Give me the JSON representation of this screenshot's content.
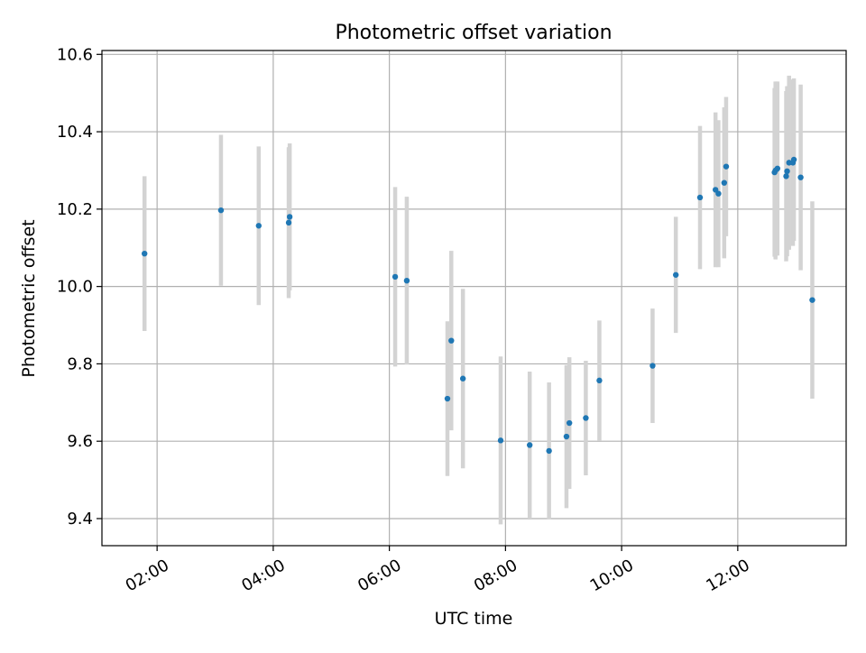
{
  "chart_data": {
    "type": "scatter",
    "title": "Photometric offset variation",
    "xlabel": "UTC time",
    "ylabel": "Photometric offset",
    "x_unit": "hours",
    "xlim": [
      "01:03",
      "13:52"
    ],
    "ylim": [
      9.33,
      10.61
    ],
    "xticks": [
      "02:00",
      "04:00",
      "06:00",
      "08:00",
      "10:00",
      "12:00"
    ],
    "yticks": [
      "9.4",
      "9.6",
      "9.8",
      "10.0",
      "10.2",
      "10.4",
      "10.6"
    ],
    "grid": true,
    "point_color": "#1f77b4",
    "errorbar_color": "#d3d3d3",
    "points": [
      {
        "time": "01:47",
        "y": 10.085,
        "err": 0.2
      },
      {
        "time": "03:06",
        "y": 10.197,
        "err": 0.195
      },
      {
        "time": "03:45",
        "y": 10.157,
        "err": 0.205
      },
      {
        "time": "04:16",
        "y": 10.165,
        "err": 0.195
      },
      {
        "time": "04:17",
        "y": 10.18,
        "err": 0.19
      },
      {
        "time": "06:06",
        "y": 10.025,
        "err": 0.232
      },
      {
        "time": "06:18",
        "y": 10.015,
        "err": 0.217
      },
      {
        "time": "07:00",
        "y": 9.71,
        "err": 0.2
      },
      {
        "time": "07:04",
        "y": 9.86,
        "err": 0.232
      },
      {
        "time": "07:16",
        "y": 9.762,
        "err": 0.232
      },
      {
        "time": "07:55",
        "y": 9.602,
        "err": 0.217
      },
      {
        "time": "08:25",
        "y": 9.59,
        "err": 0.19
      },
      {
        "time": "08:45",
        "y": 9.575,
        "err": 0.177
      },
      {
        "time": "09:03",
        "y": 9.612,
        "err": 0.185
      },
      {
        "time": "09:06",
        "y": 9.647,
        "err": 0.17
      },
      {
        "time": "09:23",
        "y": 9.66,
        "err": 0.148
      },
      {
        "time": "09:37",
        "y": 9.757,
        "err": 0.155
      },
      {
        "time": "10:32",
        "y": 9.795,
        "err": 0.148
      },
      {
        "time": "10:56",
        "y": 10.03,
        "err": 0.15
      },
      {
        "time": "11:21",
        "y": 10.23,
        "err": 0.185
      },
      {
        "time": "11:37",
        "y": 10.25,
        "err": 0.2
      },
      {
        "time": "11:40",
        "y": 10.24,
        "err": 0.19
      },
      {
        "time": "11:46",
        "y": 10.268,
        "err": 0.195
      },
      {
        "time": "11:48",
        "y": 10.31,
        "err": 0.18
      },
      {
        "time": "12:38",
        "y": 10.295,
        "err": 0.218
      },
      {
        "time": "12:39",
        "y": 10.3,
        "err": 0.23
      },
      {
        "time": "12:41",
        "y": 10.305,
        "err": 0.225
      },
      {
        "time": "12:50",
        "y": 10.285,
        "err": 0.22
      },
      {
        "time": "12:51",
        "y": 10.298,
        "err": 0.22
      },
      {
        "time": "12:53",
        "y": 10.32,
        "err": 0.225
      },
      {
        "time": "12:57",
        "y": 10.32,
        "err": 0.215
      },
      {
        "time": "12:58",
        "y": 10.328,
        "err": 0.21
      },
      {
        "time": "13:05",
        "y": 10.282,
        "err": 0.24
      },
      {
        "time": "13:17",
        "y": 9.965,
        "err": 0.255
      }
    ]
  }
}
